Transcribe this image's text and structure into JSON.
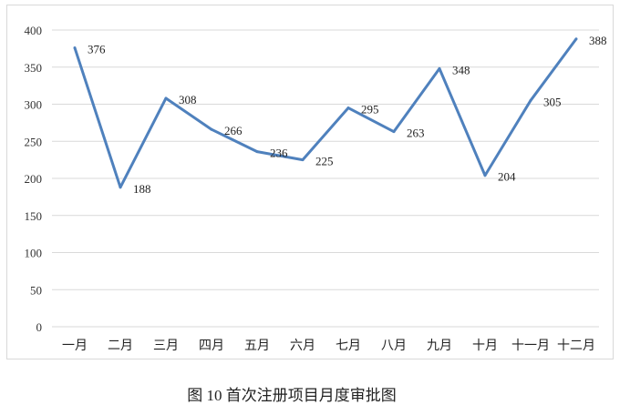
{
  "chart_data": {
    "type": "line",
    "title": "",
    "categories": [
      "一月",
      "二月",
      "三月",
      "四月",
      "五月",
      "六月",
      "七月",
      "八月",
      "九月",
      "十月",
      "十一月",
      "十二月"
    ],
    "values": [
      376,
      188,
      308,
      266,
      236,
      225,
      295,
      263,
      348,
      204,
      305,
      388
    ],
    "ylim": [
      0,
      400
    ],
    "yticks": [
      0,
      50,
      100,
      150,
      200,
      250,
      300,
      350,
      400
    ],
    "grid": true,
    "line_color": "#4f81bd"
  },
  "caption": "图 10  首次注册项目月度审批图"
}
